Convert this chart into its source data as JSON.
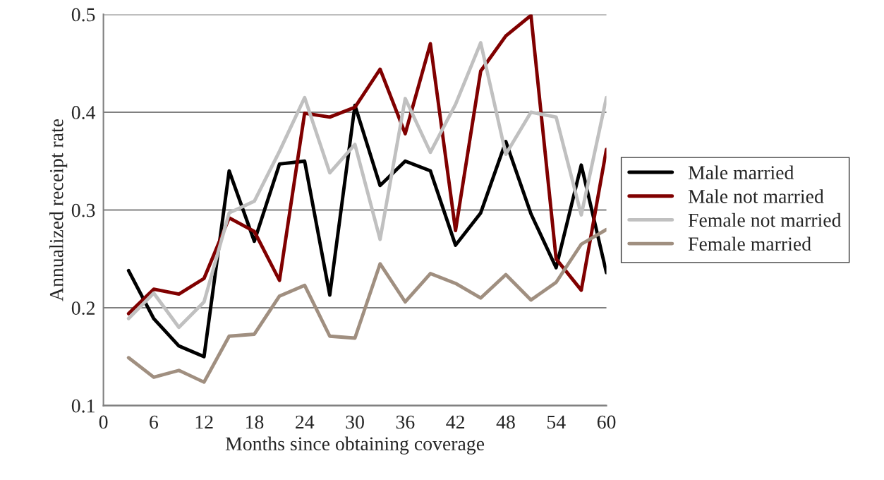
{
  "chart_data": {
    "type": "line",
    "xlabel": "Months since obtaining coverage",
    "ylabel": "Annualized receipt rate",
    "x": [
      3,
      6,
      9,
      12,
      15,
      18,
      21,
      24,
      27,
      30,
      33,
      36,
      39,
      42,
      45,
      48,
      51,
      54,
      57,
      60
    ],
    "series": [
      {
        "name": "Male married",
        "color": "#000000",
        "values": [
          0.238,
          0.189,
          0.161,
          0.15,
          0.34,
          0.268,
          0.347,
          0.35,
          0.213,
          0.407,
          0.325,
          0.35,
          0.34,
          0.264,
          0.297,
          0.37,
          0.296,
          0.241,
          0.346,
          0.236
        ]
      },
      {
        "name": "Male not married",
        "color": "#800000",
        "values": [
          0.194,
          0.219,
          0.214,
          0.23,
          0.292,
          0.278,
          0.228,
          0.399,
          0.395,
          0.405,
          0.444,
          0.378,
          0.47,
          0.279,
          0.442,
          0.478,
          0.499,
          0.25,
          0.218,
          0.362
        ]
      },
      {
        "name": "Female not married",
        "color": "#c0c0c0",
        "values": [
          0.189,
          0.215,
          0.18,
          0.206,
          0.297,
          0.309,
          0.36,
          0.415,
          0.338,
          0.367,
          0.27,
          0.414,
          0.359,
          0.408,
          0.471,
          0.357,
          0.4,
          0.395,
          0.295,
          0.415
        ]
      },
      {
        "name": "Female married",
        "color": "#a08f80",
        "values": [
          0.149,
          0.129,
          0.136,
          0.124,
          0.171,
          0.173,
          0.212,
          0.223,
          0.171,
          0.169,
          0.245,
          0.206,
          0.235,
          0.225,
          0.21,
          0.234,
          0.208,
          0.226,
          0.265,
          0.28
        ]
      }
    ],
    "xlim": [
      0,
      60
    ],
    "xticks": [
      0,
      6,
      12,
      18,
      24,
      30,
      36,
      42,
      48,
      54,
      60
    ],
    "ylim": [
      0.1,
      0.5
    ],
    "yticks": [
      0.1,
      0.2,
      0.3,
      0.4,
      0.5
    ],
    "grid": "y",
    "legend": "right",
    "marker": "none",
    "line_style": "solid"
  }
}
